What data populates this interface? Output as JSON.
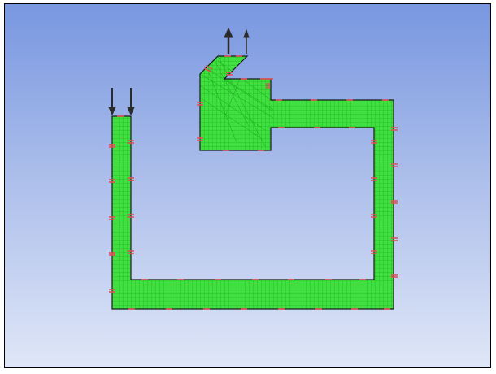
{
  "viewport": {
    "background_top_color": "#7897e0",
    "background_bottom_color": "#dfe6f7"
  },
  "geometry": {
    "mesh_fill_color": "#3fe040",
    "mesh_line_color": "#1aa51a",
    "outline_color": "#1b1b1b",
    "boundary_marker_color": "#e0505a",
    "arrow_color": "#2b2b2b",
    "mesh_cell_size": 5
  },
  "icons": {
    "inlet_arrows": "down-arrows-icon",
    "outlet_arrows": "up-arrows-icon"
  }
}
